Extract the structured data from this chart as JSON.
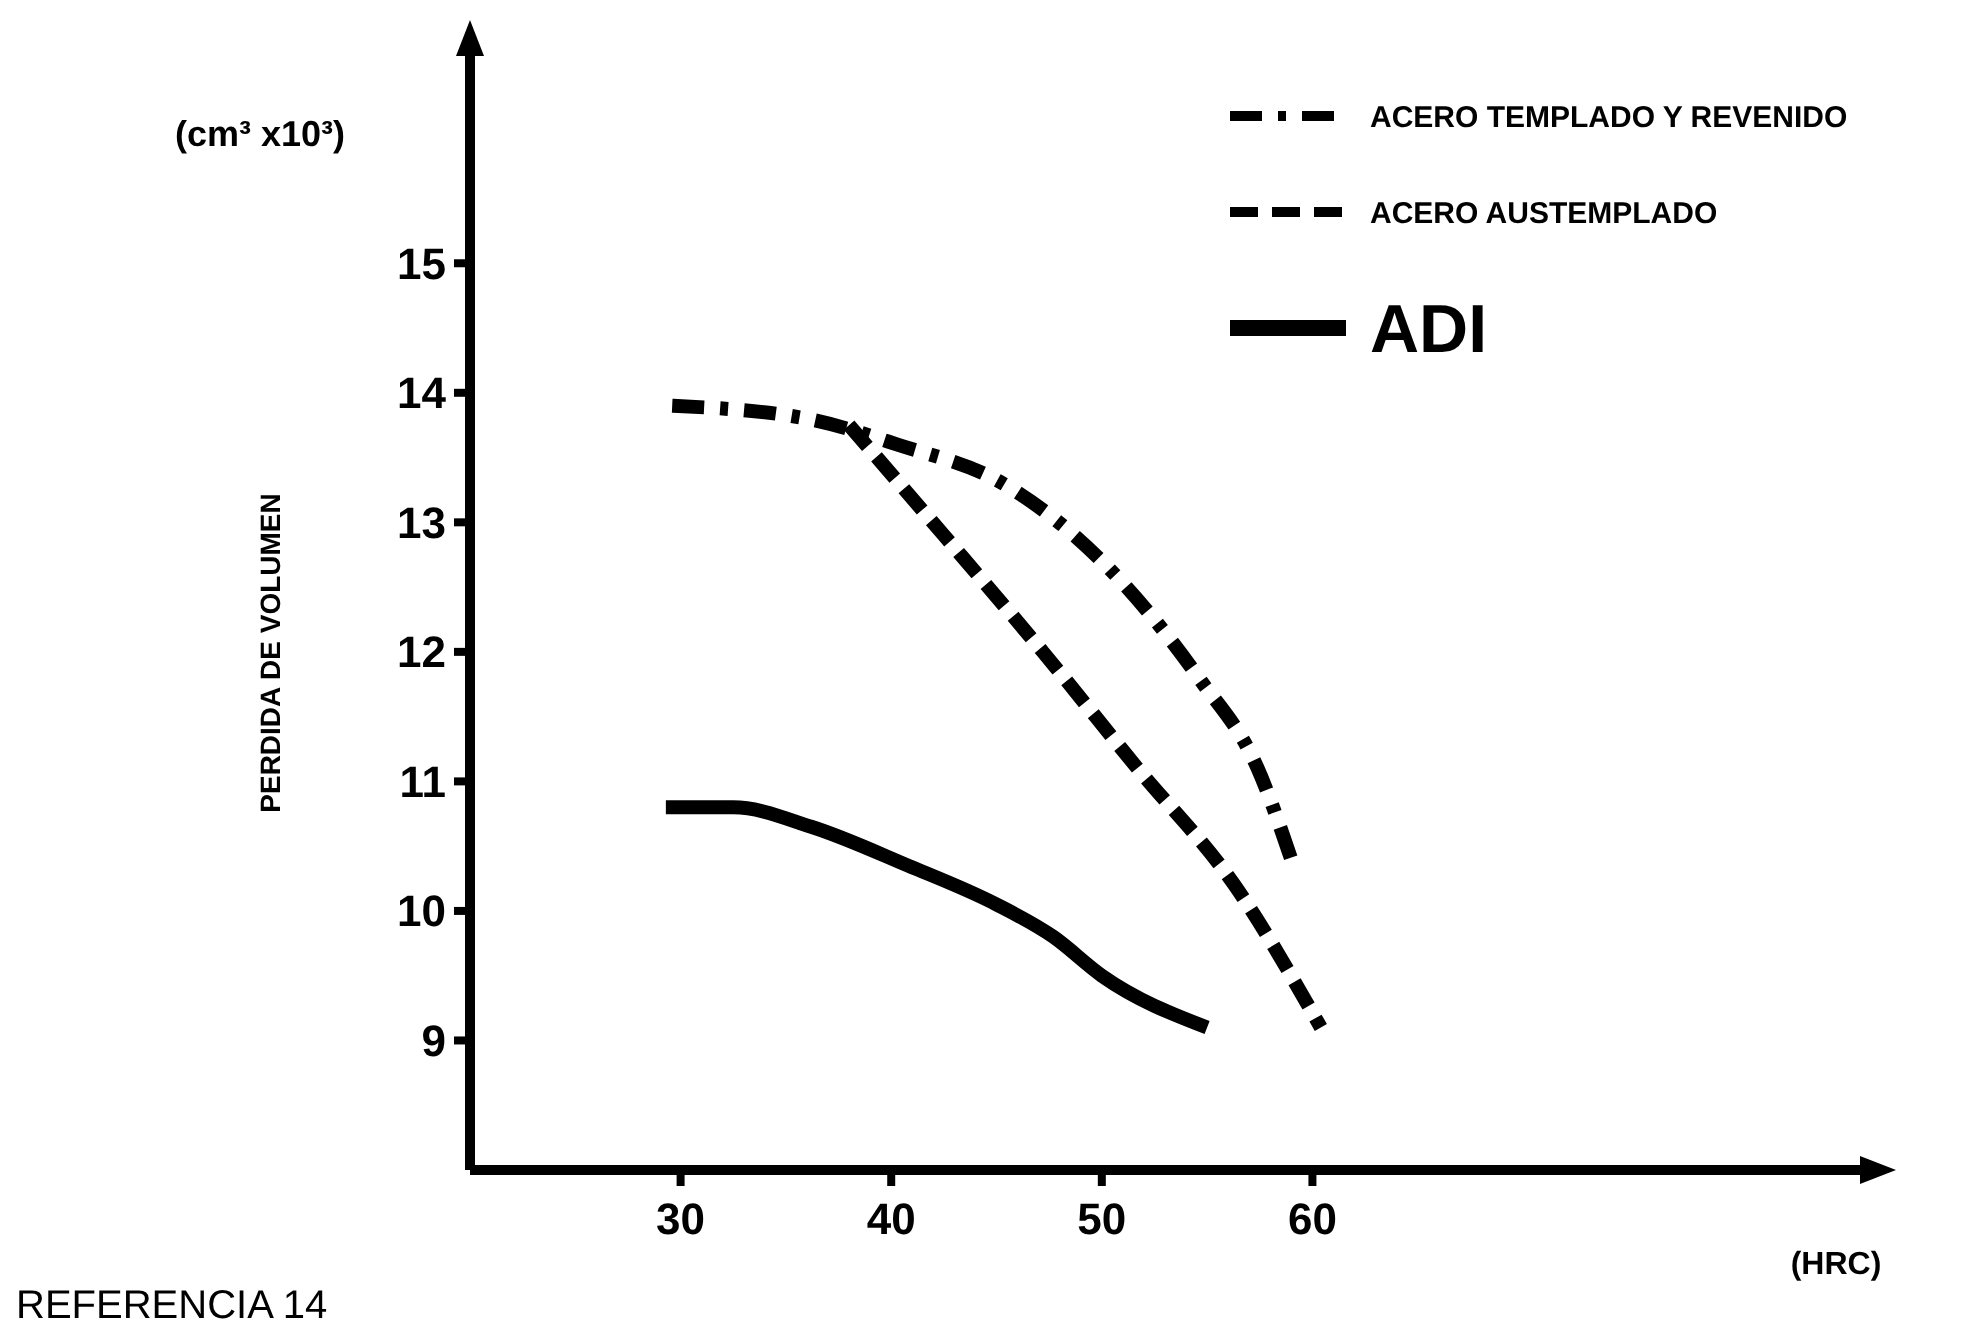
{
  "chart_data": {
    "type": "line",
    "ylabel": "PERDIDA DE VOLUMEN",
    "xlabel": "(HRC)",
    "annotations": [
      "(cm³ x10³)",
      "REFERENCIA 14"
    ],
    "xlim": [
      20,
      86
    ],
    "xticks": [
      30,
      40,
      50,
      60
    ],
    "ylim": [
      8,
      16.6
    ],
    "yticks": [
      9,
      10,
      11,
      12,
      13,
      14,
      15
    ],
    "legend": "top right",
    "grid": false,
    "series": [
      {
        "name": "ACERO TEMPLADO Y REVENIDO",
        "color": "#000000",
        "line_style": "dashdot",
        "x": [
          29.6,
          36,
          40.3,
          45.3,
          50,
          54.6,
          57.4,
          59.2
        ],
        "values": [
          13.9,
          13.8,
          13.6,
          13.3,
          12.7,
          11.8,
          11.1,
          10.3
        ]
      },
      {
        "name": "ACERO AUSTEMPLADO",
        "color": "#000000",
        "line_style": "dashed",
        "x": [
          38,
          42.5,
          47.2,
          51.7,
          56.3,
          60.4
        ],
        "values": [
          13.75,
          12.9,
          12.0,
          11.1,
          10.2,
          9.1
        ]
      },
      {
        "name": "ADI",
        "color": "#000000",
        "line_style": "solid",
        "x": [
          29.3,
          32.5,
          36.2,
          40.8,
          45,
          47.7,
          50,
          55
        ],
        "values": [
          10.8,
          10.8,
          10.65,
          10.35,
          10.05,
          9.8,
          9.5,
          9.1
        ]
      }
    ]
  }
}
